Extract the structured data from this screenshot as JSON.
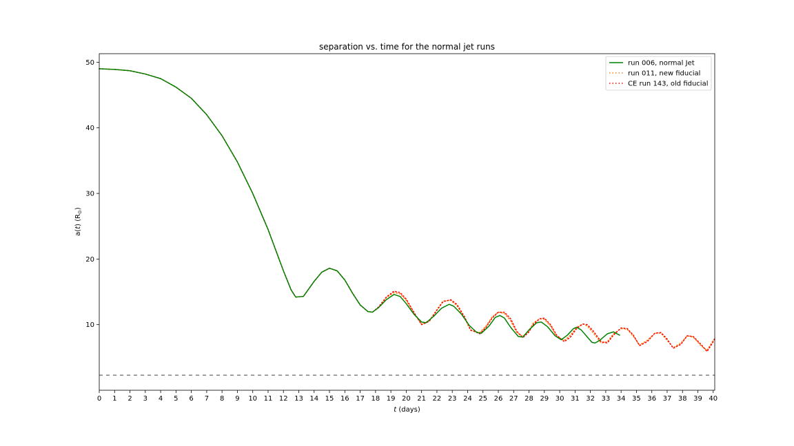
{
  "chart_data": {
    "type": "line",
    "title": "separation vs. time for the normal jet runs",
    "xlabel_var": "t",
    "xlabel_rest": " (days)",
    "ylabel_pre": "a(",
    "ylabel_var": "t",
    "ylabel_rest": ") (R",
    "ylabel_sub": "⊙",
    "ylabel_close": ")",
    "xlim": [
      0,
      40.1
    ],
    "ylim": [
      0,
      51.3
    ],
    "xticks": [
      0,
      1,
      2,
      3,
      4,
      5,
      6,
      7,
      8,
      9,
      10,
      11,
      12,
      13,
      14,
      15,
      16,
      17,
      18,
      19,
      20,
      21,
      22,
      23,
      24,
      25,
      26,
      27,
      28,
      29,
      30,
      31,
      32,
      33,
      34,
      35,
      36,
      37,
      38,
      39,
      40
    ],
    "yticks": [
      10,
      20,
      30,
      40,
      50
    ],
    "legend_position": "top-right",
    "reference_line": {
      "y": 2.3,
      "color": "#808080",
      "style": "dashed"
    },
    "series": [
      {
        "name": "run 006, normal Jet",
        "color": "#008000",
        "style": "solid",
        "x": [
          0,
          1,
          2,
          3,
          4,
          5,
          6,
          7,
          8,
          9,
          10,
          11,
          12,
          12.5,
          12.8,
          13.3,
          14,
          14.5,
          15,
          15.5,
          16,
          16.5,
          17,
          17.5,
          17.8,
          18.2,
          18.7,
          19.2,
          19.6,
          20,
          20.5,
          21,
          21.3,
          21.8,
          22.3,
          22.8,
          23.1,
          23.6,
          24.1,
          24.6,
          24.9,
          25.4,
          25.8,
          26.1,
          26.4,
          26.8,
          27.3,
          27.6,
          28,
          28.5,
          28.8,
          29.2,
          29.7,
          30.1,
          30.5,
          30.9,
          31.1,
          31.4,
          31.8,
          32.1,
          32.3,
          32.6,
          33.1,
          33.5,
          33.9
        ],
        "y": [
          49,
          48.9,
          48.7,
          48.2,
          47.5,
          46.2,
          44.5,
          42,
          38.8,
          34.8,
          30,
          24.5,
          18.2,
          15.3,
          14.2,
          14.3,
          16.6,
          18,
          18.6,
          18.2,
          16.8,
          14.8,
          13,
          12,
          11.9,
          12.6,
          13.8,
          14.6,
          14.3,
          13.2,
          11.6,
          10.4,
          10.3,
          11.3,
          12.5,
          13.1,
          12.8,
          11.6,
          9.9,
          8.8,
          8.7,
          9.8,
          11.1,
          11.4,
          11,
          9.6,
          8.2,
          8.1,
          9.2,
          10.3,
          10.4,
          9.7,
          8.3,
          7.7,
          8.4,
          9.4,
          9.6,
          9.2,
          8.1,
          7.3,
          7.2,
          7.6,
          8.6,
          8.9,
          8.4
        ]
      },
      {
        "name": "run 011, new fiducial",
        "color": "#ff7f0e",
        "style": "dotted",
        "x": [
          0,
          1,
          2,
          3,
          4,
          5,
          6,
          7,
          8,
          9,
          10,
          11,
          12,
          12.5,
          12.8,
          13.3,
          14,
          14.5,
          15,
          15.5,
          16,
          16.5,
          17,
          17.5,
          17.8,
          18.2,
          18.7,
          19.2,
          19.6,
          20,
          20.5,
          21,
          21.5,
          22,
          22.4,
          22.9,
          23.3,
          23.8,
          24.2,
          24.8,
          25.2,
          25.6,
          26,
          26.4,
          26.8,
          27.2,
          27.6,
          28,
          28.3,
          28.7,
          29,
          29.4,
          29.8,
          30.3,
          30.7,
          31.1,
          31.5,
          31.8,
          32.2,
          32.7,
          33.1,
          33.5,
          34,
          34.4,
          34.8,
          35.2,
          35.7,
          36.2,
          36.6,
          37,
          37.4,
          37.9,
          38.3,
          38.7,
          39.2,
          39.6,
          40,
          40.1
        ],
        "y": [
          49,
          48.9,
          48.7,
          48.2,
          47.5,
          46.2,
          44.5,
          42,
          38.8,
          34.8,
          30,
          24.5,
          18.2,
          15.3,
          14.2,
          14.3,
          16.6,
          18,
          18.6,
          18.2,
          16.8,
          14.8,
          13,
          12,
          11.9,
          12.6,
          14.1,
          14.9,
          14.7,
          13.7,
          11.7,
          10.1,
          10.6,
          12.3,
          13.6,
          13.7,
          12.9,
          11,
          9.1,
          8.8,
          9.8,
          11.2,
          11.9,
          11.7,
          10.6,
          8.8,
          8.2,
          9.1,
          10.3,
          10.9,
          10.8,
          9.8,
          8.2,
          7.6,
          8.4,
          9.6,
          10.1,
          9.8,
          8.7,
          7.2,
          7.4,
          8.6,
          9.4,
          9.3,
          8.2,
          6.9,
          7.6,
          8.7,
          8.7,
          7.6,
          6.5,
          7.2,
          8.3,
          8.1,
          6.8,
          6.1,
          7.6,
          7.8
        ]
      },
      {
        "name": "CE run 143, old fiducial",
        "color": "#ff0000",
        "style": "dotted",
        "x": [
          0,
          1,
          2,
          3,
          4,
          5,
          6,
          7,
          8,
          9,
          10,
          11,
          12,
          12.5,
          12.8,
          13.3,
          14,
          14.5,
          15,
          15.5,
          16,
          16.5,
          17,
          17.5,
          17.8,
          18.2,
          18.7,
          19.2,
          19.6,
          20,
          20.5,
          21,
          21.5,
          22,
          22.4,
          22.9,
          23.3,
          23.8,
          24.2,
          24.8,
          25.2,
          25.6,
          26,
          26.4,
          26.8,
          27.2,
          27.6,
          28,
          28.3,
          28.7,
          29,
          29.4,
          29.8,
          30.3,
          30.7,
          31.1,
          31.5,
          31.8,
          32.2,
          32.7,
          33.1,
          33.5,
          34,
          34.4,
          34.8,
          35.2,
          35.7,
          36.2,
          36.6,
          37,
          37.4,
          37.9,
          38.3,
          38.7,
          39.2,
          39.6,
          40,
          40.1
        ],
        "y": [
          49,
          48.9,
          48.7,
          48.2,
          47.5,
          46.2,
          44.5,
          42,
          38.8,
          34.8,
          30,
          24.5,
          18.2,
          15.3,
          14.2,
          14.3,
          16.6,
          18,
          18.6,
          18.2,
          16.8,
          14.8,
          13,
          12,
          11.9,
          12.7,
          14.2,
          15.1,
          14.9,
          13.9,
          11.9,
          10,
          10.5,
          12.2,
          13.5,
          13.8,
          13.1,
          11.2,
          9.2,
          8.6,
          9.6,
          11,
          11.9,
          11.9,
          10.9,
          9,
          8,
          8.9,
          10.1,
          10.9,
          11,
          10,
          8.4,
          7.4,
          8.1,
          9.4,
          10.1,
          10,
          9,
          7.4,
          7.2,
          8.4,
          9.5,
          9.4,
          8.4,
          6.8,
          7.4,
          8.7,
          8.8,
          7.8,
          6.4,
          7,
          8.3,
          8.2,
          7,
          5.9,
          7.4,
          7.9
        ]
      }
    ]
  }
}
